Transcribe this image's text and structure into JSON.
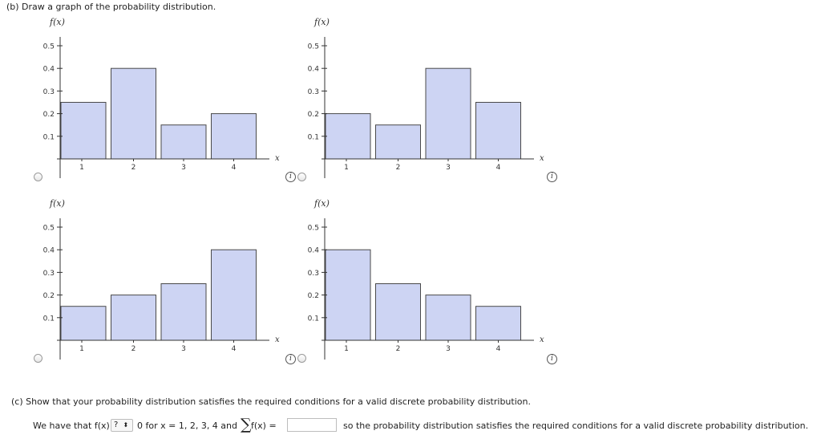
{
  "part_b": {
    "prompt": "(b)  Draw a graph of the probability distribution."
  },
  "charts": [
    {
      "y_label": "f(x)",
      "x_label": "x",
      "y_ticks": [
        "0.1",
        "0.2",
        "0.3",
        "0.4",
        "0.5"
      ],
      "x_ticks": [
        "1",
        "2",
        "3",
        "4"
      ],
      "info_icon": "i"
    },
    {
      "y_label": "f(x)",
      "x_label": "x",
      "y_ticks": [
        "0.1",
        "0.2",
        "0.3",
        "0.4",
        "0.5"
      ],
      "x_ticks": [
        "1",
        "2",
        "3",
        "4"
      ],
      "info_icon": "i"
    },
    {
      "y_label": "f(x)",
      "x_label": "x",
      "y_ticks": [
        "0.1",
        "0.2",
        "0.3",
        "0.4",
        "0.5"
      ],
      "x_ticks": [
        "1",
        "2",
        "3",
        "4"
      ],
      "info_icon": "i"
    },
    {
      "y_label": "f(x)",
      "x_label": "x",
      "y_ticks": [
        "0.1",
        "0.2",
        "0.3",
        "0.4",
        "0.5"
      ],
      "x_ticks": [
        "1",
        "2",
        "3",
        "4"
      ],
      "info_icon": "i"
    }
  ],
  "chart_data": [
    {
      "type": "bar",
      "categories": [
        1,
        2,
        3,
        4
      ],
      "values": [
        0.25,
        0.4,
        0.15,
        0.2
      ],
      "xlabel": "x",
      "ylabel": "f(x)",
      "ylim": [
        0,
        0.5
      ],
      "bar_color": "#cdd4f3"
    },
    {
      "type": "bar",
      "categories": [
        1,
        2,
        3,
        4
      ],
      "values": [
        0.2,
        0.15,
        0.4,
        0.25
      ],
      "xlabel": "x",
      "ylabel": "f(x)",
      "ylim": [
        0,
        0.5
      ],
      "bar_color": "#cdd4f3"
    },
    {
      "type": "bar",
      "categories": [
        1,
        2,
        3,
        4
      ],
      "values": [
        0.15,
        0.2,
        0.25,
        0.4
      ],
      "xlabel": "x",
      "ylabel": "f(x)",
      "ylim": [
        0,
        0.5
      ],
      "bar_color": "#cdd4f3"
    },
    {
      "type": "bar",
      "categories": [
        1,
        2,
        3,
        4
      ],
      "values": [
        0.4,
        0.25,
        0.2,
        0.15
      ],
      "xlabel": "x",
      "ylabel": "f(x)",
      "ylim": [
        0,
        0.5
      ],
      "bar_color": "#cdd4f3"
    }
  ],
  "part_c": {
    "prompt": "(c)  Show that your probability distribution satisfies the required conditions for a valid discrete probability distribution.",
    "line_start": "We have that f(x)",
    "dropdown_value": "?",
    "after_dropdown": "0 for x = 1, 2, 3, 4 and",
    "sigma": "∑",
    "sum_expr": "f(x) =",
    "sum_input_value": "",
    "line_end": "so the probability distribution satisfies the required conditions for a valid discrete probability distribution."
  }
}
